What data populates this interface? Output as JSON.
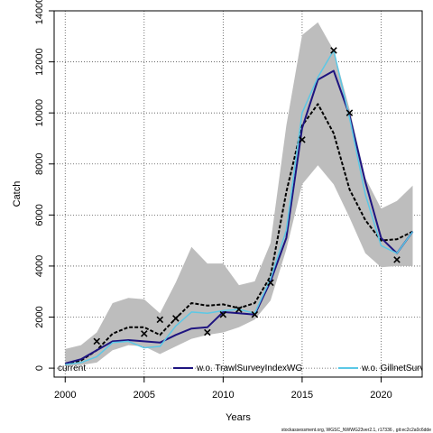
{
  "chart_data": {
    "type": "line",
    "xlabel": "Years",
    "ylabel": "Catch",
    "xlim": [
      1999.3,
      2022.6
    ],
    "ylim": [
      -350,
      14000
    ],
    "xticks": [
      2000,
      2005,
      2010,
      2015,
      2020
    ],
    "yticks": [
      0,
      2000,
      4000,
      6000,
      8000,
      10000,
      12000,
      14000
    ],
    "grid": true,
    "legend_position": "bottom",
    "footer": "stockassessment.org, WGSC_NWWG23ver2.1, r17336 , git:ec2c2a0c6dde",
    "x": [
      2000,
      2001,
      2002,
      2003,
      2004,
      2005,
      2006,
      2007,
      2008,
      2009,
      2010,
      2011,
      2012,
      2013,
      2014,
      2015,
      2016,
      2017,
      2018,
      2019,
      2020,
      2021,
      2022
    ],
    "band": {
      "upper": [
        750,
        900,
        1400,
        2550,
        2750,
        2700,
        2150,
        3350,
        4750,
        4100,
        4100,
        3250,
        3400,
        4900,
        9500,
        13050,
        13550,
        12450,
        10150,
        7450,
        6250,
        6550,
        7150
      ],
      "lower": [
        80,
        120,
        220,
        700,
        900,
        850,
        550,
        850,
        1150,
        1300,
        1400,
        1600,
        1900,
        2650,
        4650,
        7200,
        7950,
        7200,
        5900,
        4500,
        3950,
        4000,
        4000
      ]
    },
    "series": [
      {
        "name": "current",
        "color": "#000000",
        "style": "dashed",
        "width": 2,
        "values": [
          150,
          300,
          700,
          1350,
          1600,
          1600,
          1300,
          1950,
          2550,
          2450,
          2500,
          2350,
          2550,
          3600,
          6900,
          9500,
          10350,
          9200,
          7000,
          5800,
          5000,
          5050,
          5350
        ]
      },
      {
        "name": "w.o. TrawlSurveyIndexWG",
        "color": "#1e1480",
        "style": "solid",
        "width": 2,
        "values": [
          180,
          350,
          700,
          1050,
          1100,
          1050,
          1000,
          1300,
          1550,
          1600,
          2200,
          2150,
          2100,
          3400,
          5100,
          9400,
          11300,
          11650,
          9900,
          7300,
          5100,
          4500,
          5350
        ]
      },
      {
        "name": "w.o. GillnetSurveyIndex",
        "color": "#5bc8e6",
        "style": "solid",
        "width": 1.5,
        "values": [
          140,
          220,
          450,
          1000,
          1050,
          800,
          850,
          1650,
          2200,
          2150,
          2250,
          2300,
          2150,
          3500,
          5400,
          10000,
          11400,
          12450,
          9800,
          6800,
          4800,
          4500,
          5350
        ]
      }
    ],
    "observations": {
      "x": [
        2002,
        2005,
        2006,
        2007,
        2009,
        2010,
        2011,
        2012,
        2013,
        2015,
        2017,
        2018,
        2021
      ],
      "y": [
        1050,
        1350,
        1900,
        1950,
        1400,
        2100,
        2300,
        2100,
        3350,
        8950,
        12450,
        10000,
        4250
      ]
    }
  }
}
